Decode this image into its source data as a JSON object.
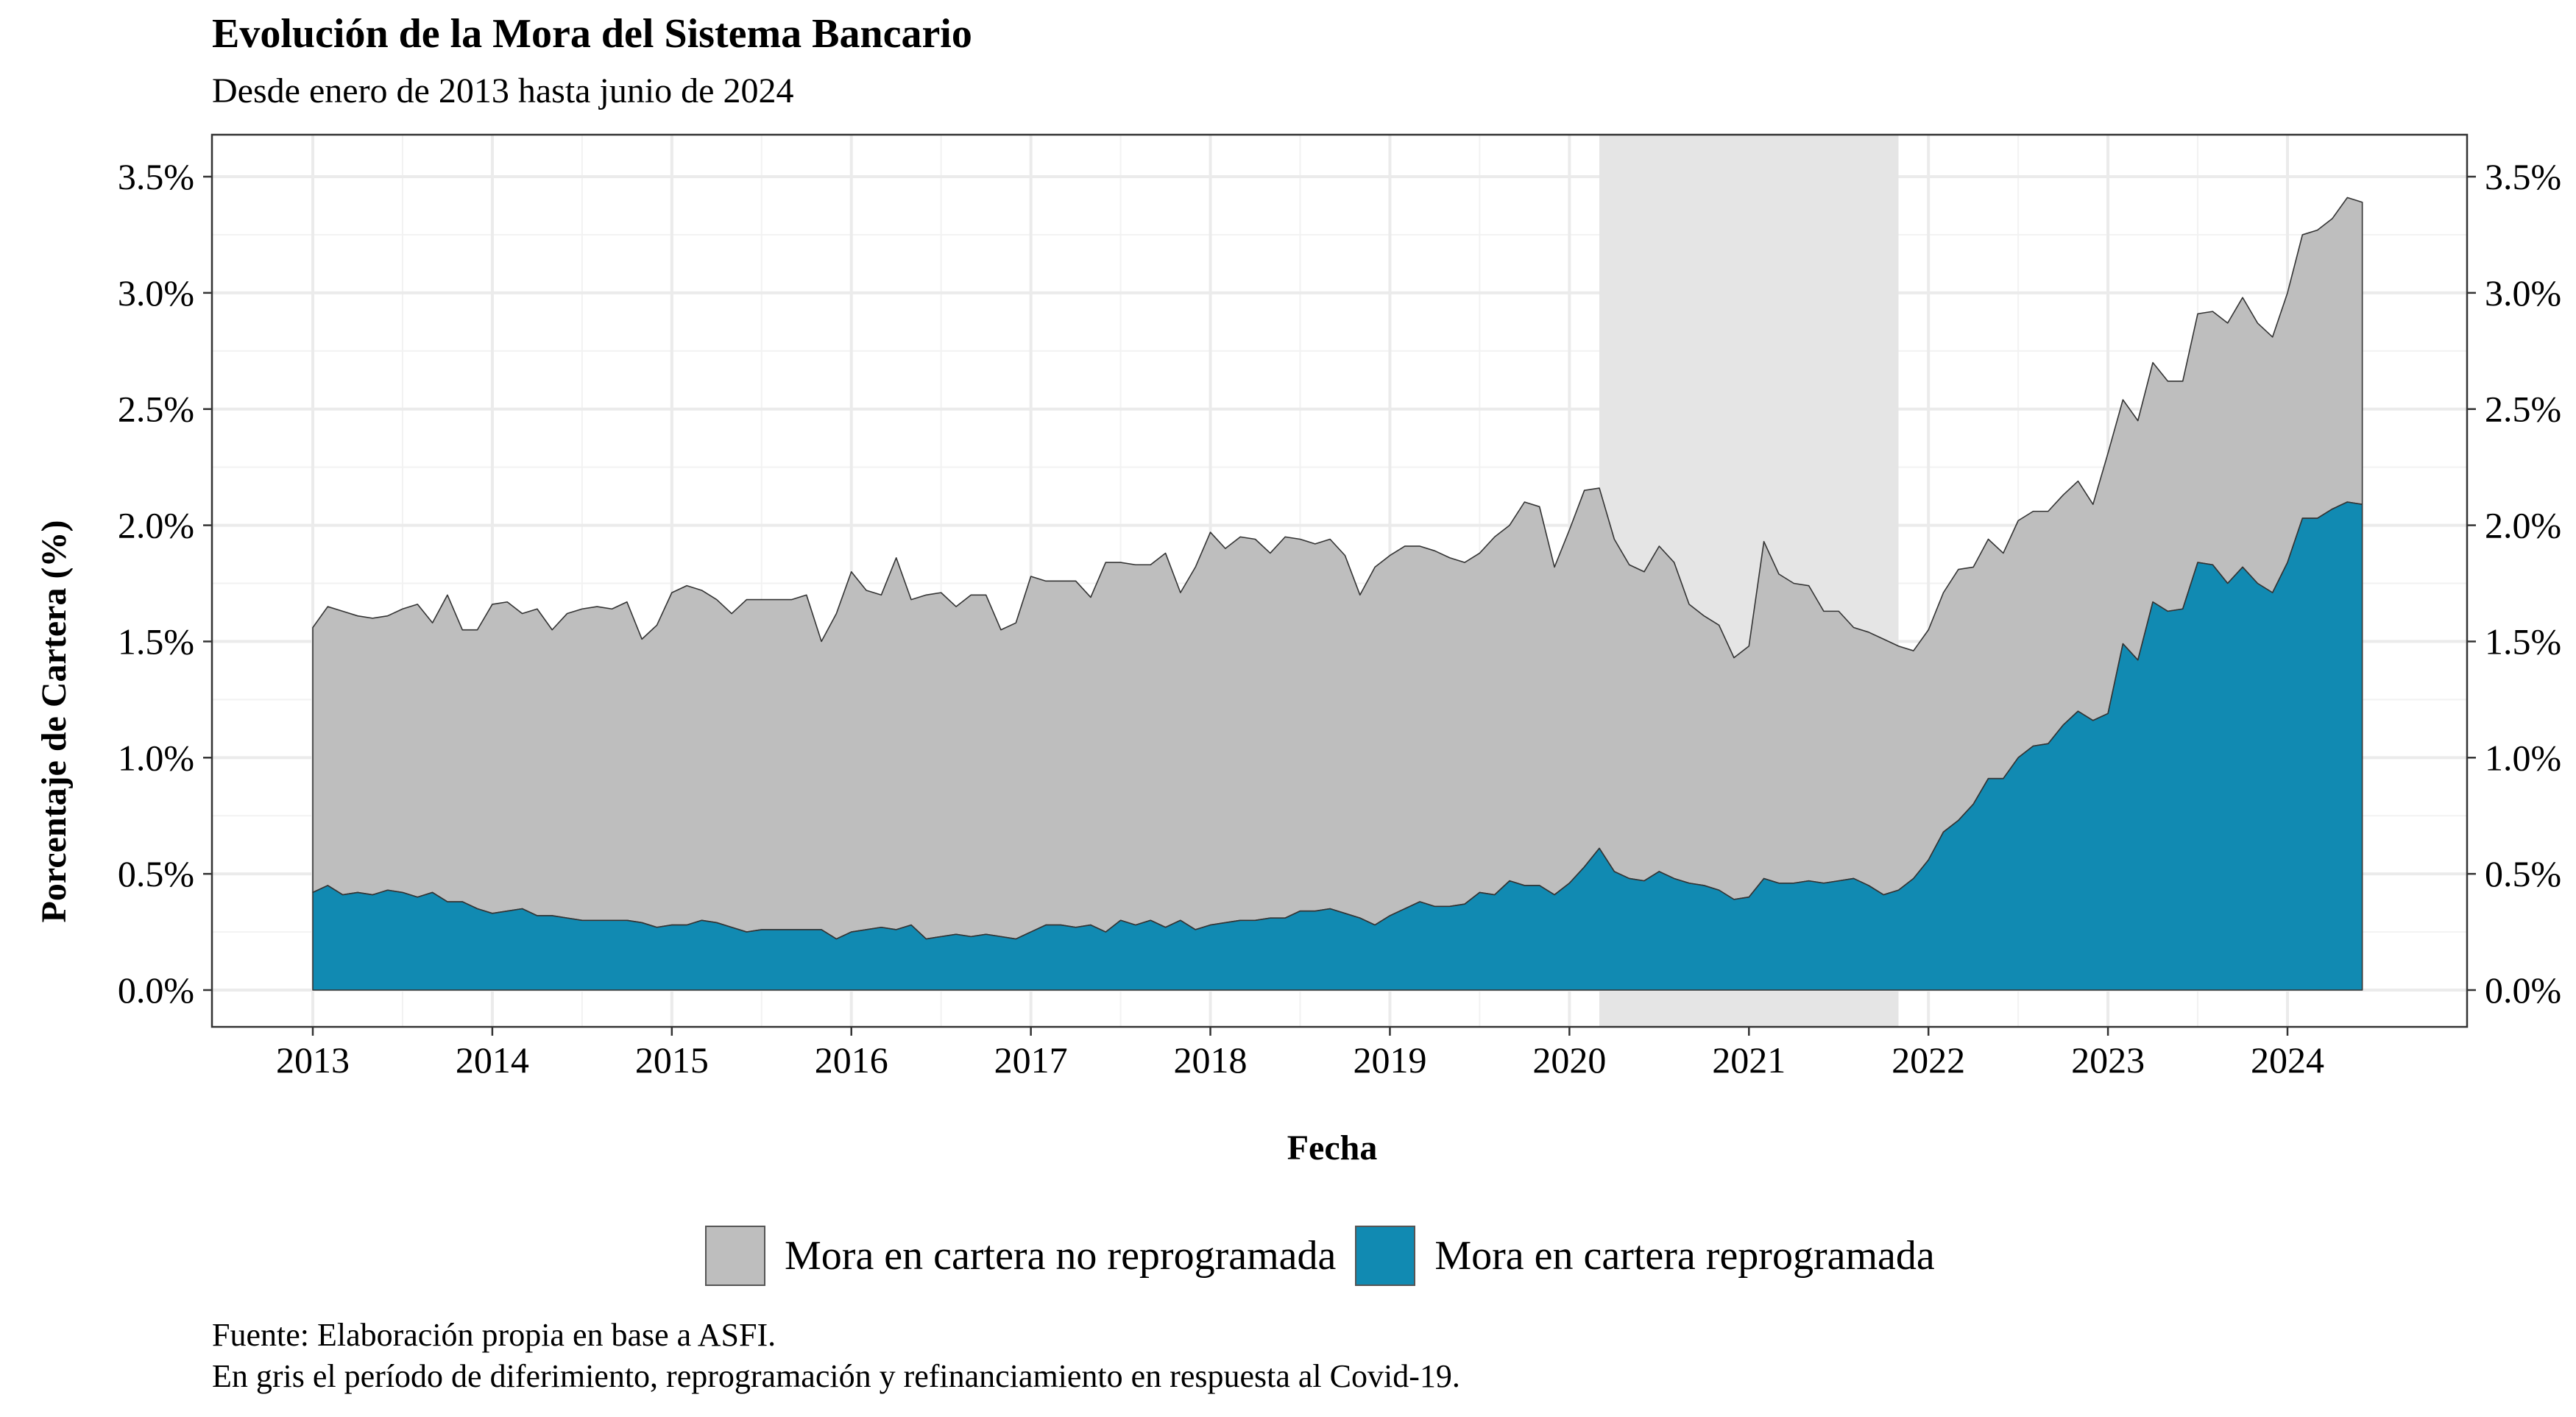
{
  "chart_data": {
    "type": "area",
    "stacked": true,
    "title": "Evolución de la Mora del Sistema Bancario",
    "subtitle": "Desde enero de 2013 hasta junio de 2024",
    "xlabel": "Fecha",
    "ylabel": "Porcentaje de Cartera (%)",
    "x_start": "2013-01",
    "x_end": "2024-06",
    "x_ticks": [
      "2013",
      "2014",
      "2015",
      "2016",
      "2017",
      "2018",
      "2019",
      "2020",
      "2021",
      "2022",
      "2023",
      "2024"
    ],
    "y_ticks": [
      "0.0%",
      "0.5%",
      "1.0%",
      "1.5%",
      "2.0%",
      "2.5%",
      "3.0%",
      "3.5%"
    ],
    "ylim": [
      0,
      3.5
    ],
    "secondary_y_axis": true,
    "grid": true,
    "legend_position": "bottom",
    "shaded_period": {
      "start": "2020-03",
      "end": "2021-11"
    },
    "series": [
      {
        "name": "Mora en cartera reprogramada",
        "color": "#118ab2",
        "values": [
          0.42,
          0.45,
          0.41,
          0.42,
          0.41,
          0.43,
          0.42,
          0.4,
          0.42,
          0.38,
          0.38,
          0.35,
          0.33,
          0.34,
          0.35,
          0.32,
          0.32,
          0.31,
          0.3,
          0.3,
          0.3,
          0.3,
          0.29,
          0.27,
          0.28,
          0.28,
          0.3,
          0.29,
          0.27,
          0.25,
          0.26,
          0.26,
          0.26,
          0.26,
          0.26,
          0.22,
          0.25,
          0.26,
          0.27,
          0.26,
          0.28,
          0.22,
          0.23,
          0.24,
          0.23,
          0.24,
          0.23,
          0.22,
          0.25,
          0.28,
          0.28,
          0.27,
          0.28,
          0.25,
          0.3,
          0.28,
          0.3,
          0.27,
          0.3,
          0.26,
          0.28,
          0.29,
          0.3,
          0.3,
          0.31,
          0.31,
          0.34,
          0.34,
          0.35,
          0.33,
          0.31,
          0.28,
          0.32,
          0.35,
          0.38,
          0.36,
          0.36,
          0.37,
          0.42,
          0.41,
          0.47,
          0.45,
          0.45,
          0.41,
          0.46,
          0.53,
          0.61,
          0.51,
          0.48,
          0.47,
          0.51,
          0.48,
          0.46,
          0.45,
          0.43,
          0.39,
          0.4,
          0.48,
          0.46,
          0.46,
          0.47,
          0.46,
          0.47,
          0.48,
          0.45,
          0.41,
          0.43,
          0.48,
          0.56,
          0.68,
          0.73,
          0.8,
          0.91,
          0.91,
          1.0,
          1.05,
          1.06,
          1.14,
          1.2,
          1.16,
          1.19,
          1.49,
          1.42,
          1.67,
          1.63,
          1.64,
          1.84,
          1.83,
          1.75,
          1.82,
          1.75,
          1.71,
          1.84,
          2.03,
          2.03,
          2.07,
          2.1,
          2.09
        ]
      },
      {
        "name": "Mora en cartera no reprogramada",
        "color": "#bebebe",
        "values": [
          1.14,
          1.2,
          1.22,
          1.19,
          1.19,
          1.18,
          1.22,
          1.26,
          1.16,
          1.32,
          1.17,
          1.2,
          1.33,
          1.33,
          1.27,
          1.32,
          1.23,
          1.31,
          1.34,
          1.35,
          1.34,
          1.37,
          1.22,
          1.3,
          1.43,
          1.46,
          1.42,
          1.39,
          1.35,
          1.43,
          1.42,
          1.42,
          1.42,
          1.44,
          1.24,
          1.4,
          1.55,
          1.46,
          1.43,
          1.6,
          1.4,
          1.48,
          1.48,
          1.41,
          1.47,
          1.46,
          1.32,
          1.36,
          1.53,
          1.48,
          1.48,
          1.49,
          1.41,
          1.59,
          1.54,
          1.55,
          1.53,
          1.61,
          1.41,
          1.56,
          1.69,
          1.61,
          1.65,
          1.64,
          1.57,
          1.64,
          1.6,
          1.58,
          1.59,
          1.54,
          1.39,
          1.54,
          1.55,
          1.56,
          1.53,
          1.53,
          1.5,
          1.47,
          1.46,
          1.54,
          1.53,
          1.65,
          1.63,
          1.41,
          1.52,
          1.62,
          1.55,
          1.43,
          1.35,
          1.33,
          1.4,
          1.36,
          1.2,
          1.16,
          1.14,
          1.04,
          1.08,
          1.45,
          1.33,
          1.29,
          1.27,
          1.17,
          1.16,
          1.08,
          1.09,
          1.1,
          1.05,
          0.98,
          0.99,
          1.03,
          1.08,
          1.02,
          1.03,
          0.97,
          1.02,
          1.01,
          1.0,
          0.99,
          0.99,
          0.93,
          1.12,
          1.05,
          1.03,
          1.03,
          0.99,
          0.98,
          1.07,
          1.09,
          1.12,
          1.16,
          1.12,
          1.1,
          1.16,
          1.22,
          1.24,
          1.25,
          1.31,
          1.3
        ]
      }
    ]
  },
  "caption": {
    "line1": "Fuente: Elaboración propia en base a ASFI.",
    "line2": "En gris el período de diferimiento, reprogramación y refinanciamiento en respuesta al Covid-19."
  }
}
